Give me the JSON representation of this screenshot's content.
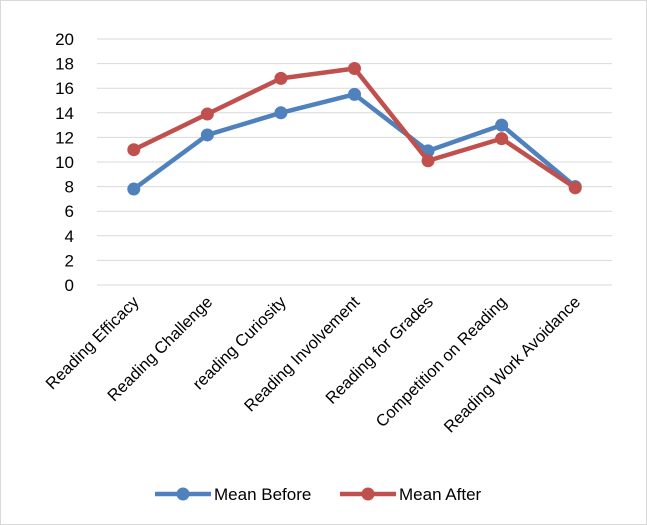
{
  "chart_data": {
    "type": "line",
    "title": "",
    "xlabel": "",
    "ylabel": "",
    "categories": [
      "Reading Efficacy",
      "Reading Challenge",
      "reading Curiosity",
      "Reading Involvement",
      "Reading for Grades",
      "Competition on Reading",
      "Reading Work Avoidance"
    ],
    "series": [
      {
        "name": "Mean Before",
        "color": "#4f81bd",
        "values": [
          7.8,
          12.2,
          14.0,
          15.5,
          10.9,
          13.0,
          8.0
        ]
      },
      {
        "name": "Mean After",
        "color": "#c0504d",
        "values": [
          11.0,
          13.9,
          16.8,
          17.6,
          10.1,
          11.9,
          7.9
        ]
      }
    ],
    "ylim": [
      0,
      20
    ],
    "yticks": [
      0,
      2,
      4,
      6,
      8,
      10,
      12,
      14,
      16,
      18,
      20
    ],
    "grid": true,
    "legend_position": "bottom"
  }
}
